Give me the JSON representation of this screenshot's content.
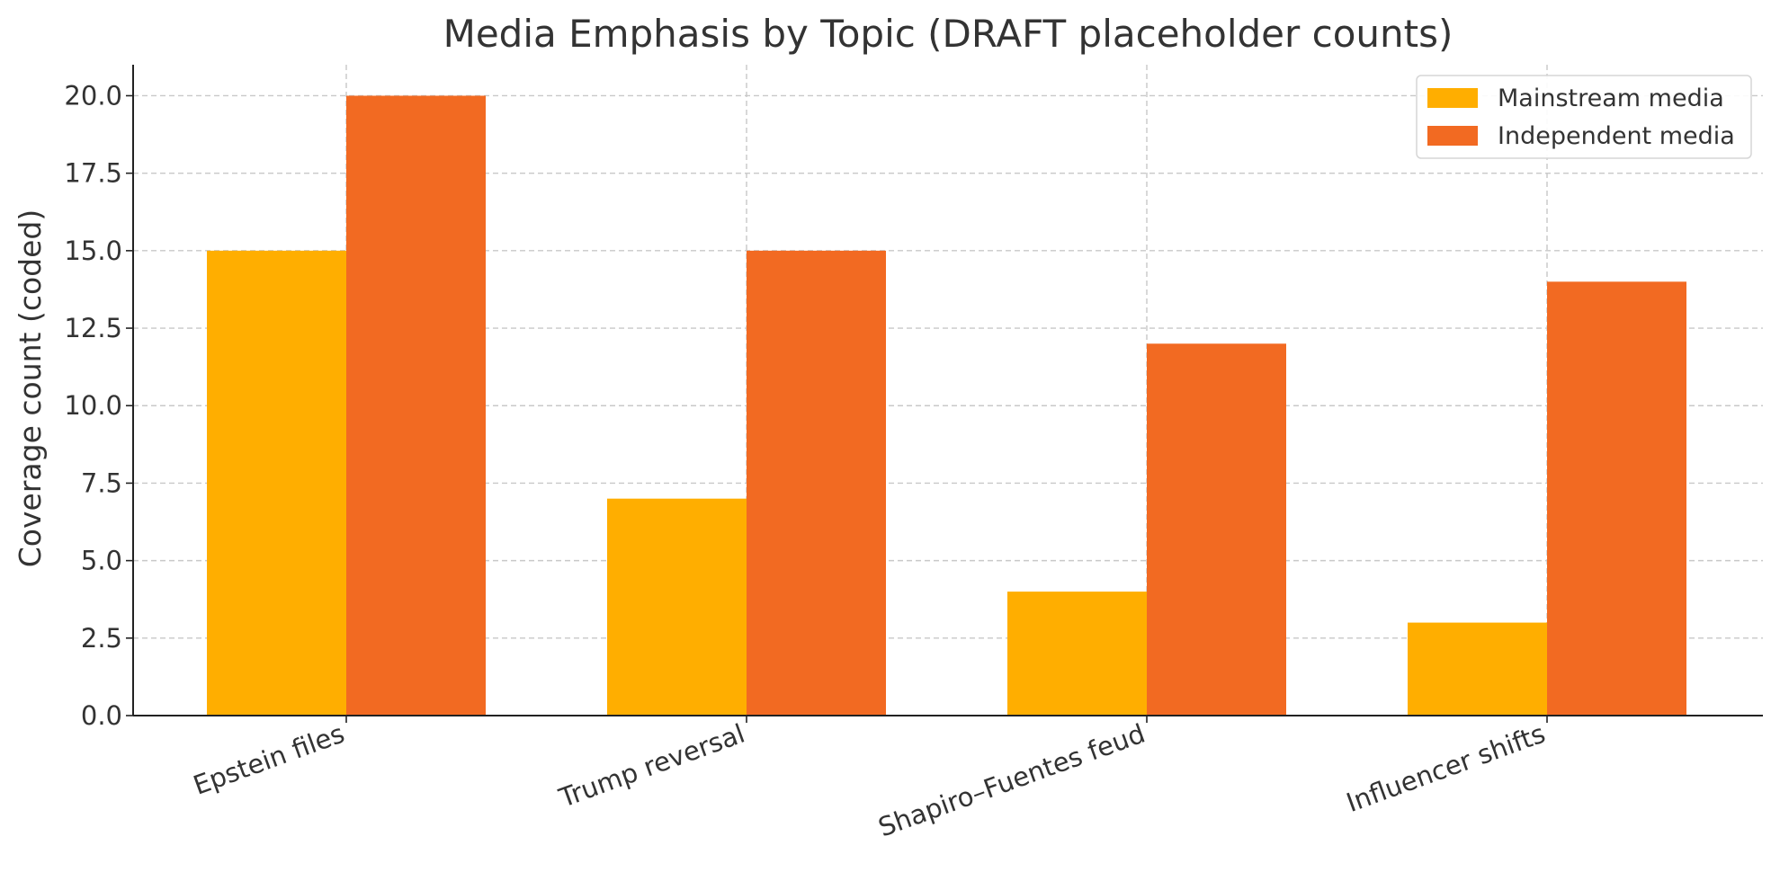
{
  "chart_data": {
    "type": "bar",
    "title": "Media Emphasis by Topic (DRAFT placeholder counts)",
    "xlabel": "",
    "ylabel": "Coverage count (coded)",
    "categories": [
      "Epstein files",
      "Trump reversal",
      "Shapiro–Fuentes feud",
      "Influencer shifts"
    ],
    "series": [
      {
        "name": "Mainstream media",
        "values": [
          15,
          7,
          4,
          3
        ],
        "color": "#FFAE00"
      },
      {
        "name": "Independent media",
        "values": [
          20,
          15,
          12,
          14
        ],
        "color": "#F26A22"
      }
    ],
    "ylim": [
      0,
      21
    ],
    "yticks": [
      "0.0",
      "2.5",
      "5.0",
      "7.5",
      "10.0",
      "12.5",
      "15.0",
      "17.5",
      "20.0"
    ],
    "grid": true,
    "legend_position": "top-right"
  }
}
